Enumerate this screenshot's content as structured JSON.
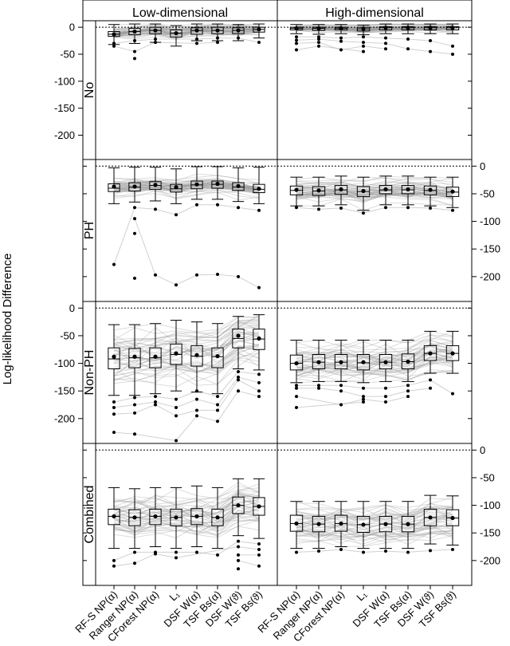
{
  "chart_data": {
    "type": "boxplot",
    "title": "",
    "ylabel": "Log-likelihood Difference",
    "column_titles": [
      "Low-dimensional",
      "High-dimensional"
    ],
    "row_titles": [
      "No",
      "PH",
      "Non-PH",
      "Combined"
    ],
    "row_ylim": [
      [
        -245,
        12
      ],
      [
        -245,
        12
      ],
      [
        -245,
        12
      ],
      [
        -245,
        12
      ]
    ],
    "y_ticks": [
      0,
      -50,
      -100,
      -150,
      -200
    ],
    "y_tick_labels": [
      "0",
      "-50",
      "-100",
      "-150",
      "-200"
    ],
    "reference_line": 0,
    "grid": false,
    "categories": [
      "RF-S NP(α)",
      "Ranger NP(α)",
      "CForest NP(α)",
      "L₁",
      "DSF W(α)",
      "TSF Bs(α)",
      "DSF W(ϑ)",
      "TSF Bs(ϑ)"
    ],
    "panels": [
      {
        "row": "No",
        "column": "Low-dimensional",
        "boxes": [
          {
            "q1": -17,
            "median": -13,
            "q3": -8,
            "lo": -32,
            "hi": 5,
            "mean": -13,
            "outliers": [
              -30,
              -35
            ]
          },
          {
            "q1": -14,
            "median": -8,
            "q3": -2,
            "lo": -30,
            "hi": 6,
            "mean": -8,
            "outliers": [
              -25,
              -45,
              -58
            ]
          },
          {
            "q1": -12,
            "median": -6,
            "q3": 0,
            "lo": -28,
            "hi": 6,
            "mean": -6,
            "outliers": [
              -22,
              -28
            ]
          },
          {
            "q1": -18,
            "median": -11,
            "q3": -5,
            "lo": -35,
            "hi": 3,
            "mean": -11,
            "outliers": []
          },
          {
            "q1": -13,
            "median": -6,
            "q3": -1,
            "lo": -25,
            "hi": 6,
            "mean": -6,
            "outliers": [
              -22,
              -30
            ]
          },
          {
            "q1": -12,
            "median": -6,
            "q3": 0,
            "lo": -25,
            "hi": 6,
            "mean": -6,
            "outliers": [
              -20,
              -28
            ]
          },
          {
            "q1": -12,
            "median": -6,
            "q3": -1,
            "lo": -25,
            "hi": 5,
            "mean": -6,
            "outliers": [
              -20
            ]
          },
          {
            "q1": -9,
            "median": -4,
            "q3": 0,
            "lo": -20,
            "hi": 6,
            "mean": -4,
            "outliers": [
              -28
            ]
          }
        ]
      },
      {
        "row": "No",
        "column": "High-dimensional",
        "boxes": [
          {
            "q1": -5,
            "median": -2,
            "q3": 0,
            "lo": -12,
            "hi": 5,
            "mean": -2,
            "outliers": [
              -18,
              -24,
              -30,
              -42
            ]
          },
          {
            "q1": -6,
            "median": -2,
            "q3": 0,
            "lo": -13,
            "hi": 5,
            "mean": -2,
            "outliers": [
              -18,
              -22,
              -28,
              -35
            ]
          },
          {
            "q1": -5,
            "median": -2,
            "q3": 0,
            "lo": -12,
            "hi": 5,
            "mean": -2,
            "outliers": [
              -20,
              -26,
              -42
            ]
          },
          {
            "q1": -7,
            "median": -3,
            "q3": 0,
            "lo": -14,
            "hi": 4,
            "mean": -3,
            "outliers": [
              -18,
              -28,
              -35,
              -45
            ]
          },
          {
            "q1": -5,
            "median": -1,
            "q3": 1,
            "lo": -12,
            "hi": 6,
            "mean": -1,
            "outliers": [
              -20,
              -30,
              -40
            ]
          },
          {
            "q1": -5,
            "median": -1,
            "q3": 1,
            "lo": -12,
            "hi": 6,
            "mean": -1,
            "outliers": [
              -22,
              -40
            ]
          },
          {
            "q1": -5,
            "median": -1,
            "q3": 1,
            "lo": -12,
            "hi": 6,
            "mean": -1,
            "outliers": [
              -25,
              -45
            ]
          },
          {
            "q1": -5,
            "median": -1,
            "q3": 1,
            "lo": -12,
            "hi": 6,
            "mean": -1,
            "outliers": [
              -35,
              -50
            ]
          }
        ]
      },
      {
        "row": "PH",
        "column": "Low-dimensional",
        "boxes": [
          {
            "q1": -46,
            "median": -40,
            "q3": -32,
            "lo": -68,
            "hi": -3,
            "mean": -37,
            "outliers": [
              -178
            ]
          },
          {
            "q1": -45,
            "median": -38,
            "q3": -30,
            "lo": -65,
            "hi": -2,
            "mean": -37,
            "outliers": [
              -75,
              -95,
              -122,
              -203
            ]
          },
          {
            "q1": -42,
            "median": -35,
            "q3": -28,
            "lo": -63,
            "hi": -2,
            "mean": -34,
            "outliers": [
              -78,
              -197
            ]
          },
          {
            "q1": -47,
            "median": -41,
            "q3": -33,
            "lo": -68,
            "hi": -5,
            "mean": -38,
            "outliers": [
              -88,
              -215
            ]
          },
          {
            "q1": -41,
            "median": -34,
            "q3": -27,
            "lo": -60,
            "hi": -1,
            "mean": -33,
            "outliers": [
              -70,
              -197
            ]
          },
          {
            "q1": -40,
            "median": -33,
            "q3": -27,
            "lo": -60,
            "hi": -1,
            "mean": -32,
            "outliers": [
              -70,
              -196
            ]
          },
          {
            "q1": -44,
            "median": -38,
            "q3": -30,
            "lo": -64,
            "hi": -3,
            "mean": -36,
            "outliers": [
              -75,
              -200
            ]
          },
          {
            "q1": -48,
            "median": -42,
            "q3": -33,
            "lo": -68,
            "hi": -2,
            "mean": -41,
            "outliers": [
              -80,
              -220
            ]
          }
        ]
      },
      {
        "row": "PH",
        "column": "High-dimensional",
        "boxes": [
          {
            "q1": -52,
            "median": -44,
            "q3": -36,
            "lo": -72,
            "hi": -20,
            "mean": -43,
            "outliers": [
              -75
            ]
          },
          {
            "q1": -53,
            "median": -45,
            "q3": -37,
            "lo": -72,
            "hi": -20,
            "mean": -44,
            "outliers": [
              -78
            ]
          },
          {
            "q1": -51,
            "median": -43,
            "q3": -35,
            "lo": -70,
            "hi": -18,
            "mean": -42,
            "outliers": [
              -76
            ]
          },
          {
            "q1": -55,
            "median": -46,
            "q3": -37,
            "lo": -80,
            "hi": -20,
            "mean": -45,
            "outliers": [
              -85
            ]
          },
          {
            "q1": -50,
            "median": -43,
            "q3": -35,
            "lo": -70,
            "hi": -18,
            "mean": -42,
            "outliers": [
              -75
            ]
          },
          {
            "q1": -50,
            "median": -43,
            "q3": -35,
            "lo": -70,
            "hi": -18,
            "mean": -42,
            "outliers": [
              -75
            ]
          },
          {
            "q1": -52,
            "median": -44,
            "q3": -36,
            "lo": -72,
            "hi": -20,
            "mean": -43,
            "outliers": [
              -76
            ]
          },
          {
            "q1": -55,
            "median": -47,
            "q3": -38,
            "lo": -75,
            "hi": -20,
            "mean": -46,
            "outliers": [
              -80
            ]
          }
        ]
      },
      {
        "row": "Non-PH",
        "column": "Low-dimensional",
        "boxes": [
          {
            "q1": -110,
            "median": -92,
            "q3": -72,
            "lo": -158,
            "hi": -30,
            "mean": -88,
            "outliers": [
              -170,
              -180,
              -192,
              -225
            ]
          },
          {
            "q1": -108,
            "median": -90,
            "q3": -73,
            "lo": -158,
            "hi": -30,
            "mean": -88,
            "outliers": [
              -162,
              -175,
              -190,
              -228
            ]
          },
          {
            "q1": -108,
            "median": -90,
            "q3": -72,
            "lo": -155,
            "hi": -28,
            "mean": -88,
            "outliers": [
              -160,
              -170,
              -175
            ]
          },
          {
            "q1": -102,
            "median": -84,
            "q3": -65,
            "lo": -150,
            "hi": -22,
            "mean": -82,
            "outliers": [
              -165,
              -180,
              -195,
              -240
            ]
          },
          {
            "q1": -105,
            "median": -87,
            "q3": -68,
            "lo": -152,
            "hi": -25,
            "mean": -85,
            "outliers": [
              -150,
              -165,
              -185,
              -195
            ]
          },
          {
            "q1": -108,
            "median": -88,
            "q3": -72,
            "lo": -155,
            "hi": -28,
            "mean": -87,
            "outliers": [
              -160,
              -175,
              -185,
              -205
            ]
          },
          {
            "q1": -72,
            "median": -55,
            "q3": -38,
            "lo": -110,
            "hi": -15,
            "mean": -50,
            "outliers": [
              -115,
              -125,
              -130,
              -150
            ]
          },
          {
            "q1": -75,
            "median": -56,
            "q3": -38,
            "lo": -112,
            "hi": -12,
            "mean": -55,
            "outliers": [
              -120,
              -135,
              -150,
              -160
            ]
          }
        ]
      },
      {
        "row": "Non-PH",
        "column": "High-dimensional",
        "boxes": [
          {
            "q1": -112,
            "median": -100,
            "q3": -85,
            "lo": -135,
            "hi": -58,
            "mean": -100,
            "outliers": [
              -140,
              -145,
              -160,
              -180
            ]
          },
          {
            "q1": -110,
            "median": -98,
            "q3": -84,
            "lo": -133,
            "hi": -58,
            "mean": -98,
            "outliers": [
              -140,
              -145
            ]
          },
          {
            "q1": -110,
            "median": -98,
            "q3": -84,
            "lo": -133,
            "hi": -58,
            "mean": -98,
            "outliers": [
              -140,
              -150,
              -175
            ]
          },
          {
            "q1": -112,
            "median": -99,
            "q3": -84,
            "lo": -135,
            "hi": -58,
            "mean": -98,
            "outliers": [
              -145,
              -160,
              -165,
              -170
            ]
          },
          {
            "q1": -110,
            "median": -98,
            "q3": -84,
            "lo": -133,
            "hi": -58,
            "mean": -98,
            "outliers": [
              -145,
              -160,
              -170
            ]
          },
          {
            "q1": -110,
            "median": -97,
            "q3": -83,
            "lo": -133,
            "hi": -58,
            "mean": -97,
            "outliers": [
              -140,
              -150,
              -160
            ]
          },
          {
            "q1": -95,
            "median": -82,
            "q3": -68,
            "lo": -118,
            "hi": -42,
            "mean": -82,
            "outliers": [
              -130,
              -145
            ]
          },
          {
            "q1": -95,
            "median": -82,
            "q3": -68,
            "lo": -118,
            "hi": -42,
            "mean": -82,
            "outliers": [
              -155
            ]
          }
        ]
      },
      {
        "row": "Combined",
        "column": "Low-dimensional",
        "boxes": [
          {
            "q1": -135,
            "median": -120,
            "q3": -107,
            "lo": -178,
            "hi": -68,
            "mean": -120,
            "outliers": [
              -200,
              -210
            ]
          },
          {
            "q1": -137,
            "median": -122,
            "q3": -108,
            "lo": -178,
            "hi": -70,
            "mean": -122,
            "outliers": [
              -185,
              -205
            ]
          },
          {
            "q1": -135,
            "median": -120,
            "q3": -107,
            "lo": -175,
            "hi": -68,
            "mean": -120,
            "outliers": [
              -185,
              -188
            ]
          },
          {
            "q1": -137,
            "median": -122,
            "q3": -107,
            "lo": -178,
            "hi": -68,
            "mean": -122,
            "outliers": [
              -185,
              -195
            ]
          },
          {
            "q1": -135,
            "median": -120,
            "q3": -106,
            "lo": -175,
            "hi": -65,
            "mean": -120,
            "outliers": [
              -185
            ]
          },
          {
            "q1": -137,
            "median": -122,
            "q3": -107,
            "lo": -178,
            "hi": -68,
            "mean": -122,
            "outliers": [
              -190
            ]
          },
          {
            "q1": -115,
            "median": -100,
            "q3": -85,
            "lo": -155,
            "hi": -52,
            "mean": -100,
            "outliers": [
              -165,
              -175,
              -190,
              -200,
              -215
            ]
          },
          {
            "q1": -118,
            "median": -102,
            "q3": -86,
            "lo": -160,
            "hi": -52,
            "mean": -102,
            "outliers": [
              -170,
              -180,
              -190,
              -210
            ]
          }
        ]
      },
      {
        "row": "Combined",
        "column": "High-dimensional",
        "boxes": [
          {
            "q1": -147,
            "median": -133,
            "q3": -118,
            "lo": -178,
            "hi": -93,
            "mean": -133,
            "outliers": [
              -185
            ]
          },
          {
            "q1": -148,
            "median": -134,
            "q3": -120,
            "lo": -178,
            "hi": -93,
            "mean": -134,
            "outliers": [
              -183
            ]
          },
          {
            "q1": -147,
            "median": -133,
            "q3": -118,
            "lo": -175,
            "hi": -93,
            "mean": -133,
            "outliers": [
              -180
            ]
          },
          {
            "q1": -149,
            "median": -135,
            "q3": -120,
            "lo": -178,
            "hi": -93,
            "mean": -135,
            "outliers": [
              -185
            ]
          },
          {
            "q1": -148,
            "median": -134,
            "q3": -120,
            "lo": -178,
            "hi": -93,
            "mean": -134,
            "outliers": [
              -183
            ]
          },
          {
            "q1": -148,
            "median": -134,
            "q3": -120,
            "lo": -178,
            "hi": -93,
            "mean": -134,
            "outliers": [
              -185
            ]
          },
          {
            "q1": -137,
            "median": -122,
            "q3": -107,
            "lo": -170,
            "hi": -82,
            "mean": -122,
            "outliers": [
              -182
            ]
          },
          {
            "q1": -137,
            "median": -123,
            "q3": -108,
            "lo": -172,
            "hi": -83,
            "mean": -123,
            "outliers": [
              -180
            ]
          }
        ]
      }
    ]
  }
}
